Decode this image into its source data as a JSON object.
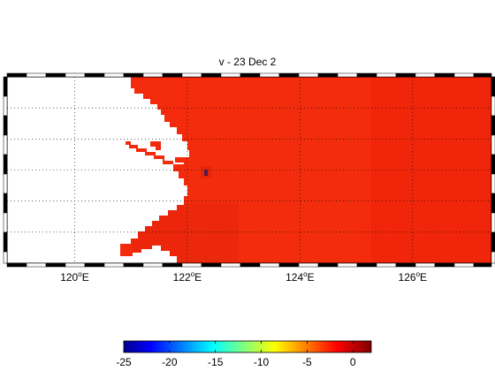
{
  "title": "v - 23 Dec 2",
  "axes": {
    "lon_ticks": [
      {
        "value": 120,
        "label": "120",
        "sup": "o",
        "suffix": "E"
      },
      {
        "value": 122,
        "label": "122",
        "sup": "o",
        "suffix": "E"
      },
      {
        "value": 124,
        "label": "124",
        "sup": "o",
        "suffix": "E"
      },
      {
        "value": 126,
        "label": "126",
        "sup": "o",
        "suffix": "E"
      }
    ],
    "lon_range": [
      118.8,
      127.4
    ],
    "lat_gridlines": 6
  },
  "colors": {
    "field": "#f22a0a",
    "field_dark": "#e11a0a",
    "land": "#ffffff",
    "anomaly": "#1a1a6e"
  },
  "colorbar": {
    "min": -25,
    "max": 2,
    "tick_labels": [
      "-25",
      "-20",
      "-15",
      "-10",
      "-5",
      "0"
    ],
    "tick_values": [
      -25,
      -20,
      -15,
      -10,
      -5,
      0
    ]
  }
}
